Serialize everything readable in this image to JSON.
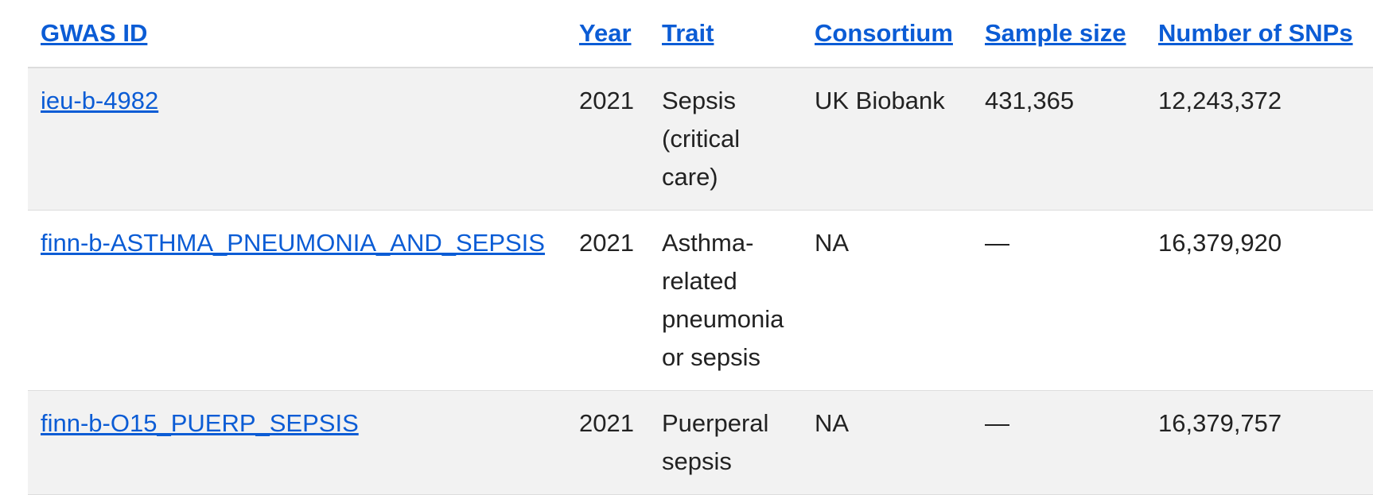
{
  "table": {
    "headers": [
      "GWAS ID",
      "Year",
      "Trait",
      "Consortium",
      "Sample size",
      "Number of SNPs"
    ],
    "rows": [
      [
        "ieu-b-4982",
        "2021",
        "Sepsis (critical care)",
        "UK Biobank",
        "431,365",
        "12,243,372"
      ],
      [
        "finn-b-ASTHMA_PNEUMONIA_AND_SEPSIS",
        "2021",
        "Asthma-related pneumonia or sepsis",
        "NA",
        "—",
        "16,379,920"
      ],
      [
        "finn-b-O15_PUERP_SEPSIS",
        "2021",
        "Puerperal sepsis",
        "NA",
        "—",
        "16,379,757"
      ]
    ]
  }
}
